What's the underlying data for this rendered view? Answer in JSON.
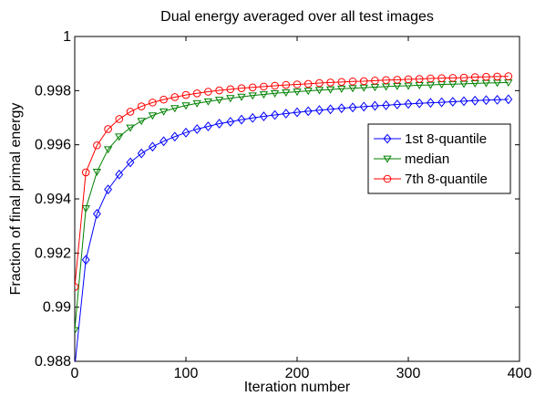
{
  "chart_data": {
    "type": "line",
    "title": "Dual energy averaged over all test images",
    "xlabel": "Iteration number",
    "ylabel": "Fraction of final primal energy",
    "xlim": [
      0,
      400
    ],
    "ylim": [
      0.988,
      1
    ],
    "x_ticks": [
      0,
      100,
      200,
      300,
      400
    ],
    "x_tick_labels": [
      "0",
      "100",
      "200",
      "300",
      "400"
    ],
    "y_ticks": [
      0.988,
      0.99,
      0.992,
      0.994,
      0.996,
      0.998,
      1
    ],
    "y_tick_labels": [
      "0.988",
      "0.99",
      "0.992",
      "0.994",
      "0.996",
      "0.998",
      "1"
    ],
    "grid": false,
    "legend_position": "right",
    "x": [
      0,
      10,
      20,
      30,
      40,
      50,
      60,
      70,
      80,
      90,
      100,
      110,
      120,
      130,
      140,
      150,
      160,
      170,
      180,
      190,
      200,
      210,
      220,
      230,
      240,
      250,
      260,
      270,
      280,
      290,
      300,
      310,
      320,
      330,
      340,
      350,
      360,
      370,
      380,
      390
    ],
    "series": [
      {
        "name": "1st 8-quantile",
        "color": "#0000ff",
        "marker": "diamond",
        "values": [
          0.9878,
          0.99175,
          0.99345,
          0.99435,
          0.9949,
          0.99535,
          0.99568,
          0.99593,
          0.99613,
          0.9963,
          0.99645,
          0.99658,
          0.99668,
          0.99678,
          0.99685,
          0.99693,
          0.99699,
          0.99705,
          0.9971,
          0.99715,
          0.9972,
          0.99724,
          0.99728,
          0.99731,
          0.99735,
          0.99738,
          0.99741,
          0.99744,
          0.99746,
          0.99749,
          0.99751,
          0.99753,
          0.99755,
          0.99757,
          0.99759,
          0.99761,
          0.99763,
          0.99765,
          0.99766,
          0.99768
        ]
      },
      {
        "name": "median",
        "color": "#008000",
        "marker": "triangle-down",
        "values": [
          0.98915,
          0.99365,
          0.995,
          0.99583,
          0.9963,
          0.99663,
          0.99688,
          0.99708,
          0.99723,
          0.99735,
          0.99745,
          0.99753,
          0.9976,
          0.99766,
          0.99772,
          0.99777,
          0.99782,
          0.99786,
          0.9979,
          0.99793,
          0.99796,
          0.99799,
          0.99802,
          0.99804,
          0.99807,
          0.99809,
          0.99811,
          0.99813,
          0.99815,
          0.99817,
          0.99818,
          0.9982,
          0.99821,
          0.99823,
          0.99824,
          0.99825,
          0.99827,
          0.99828,
          0.99829,
          0.9983
        ]
      },
      {
        "name": "7th 8-quantile",
        "color": "#ff0000",
        "marker": "circle",
        "values": [
          0.99075,
          0.99498,
          0.99598,
          0.99658,
          0.99695,
          0.99722,
          0.99742,
          0.99756,
          0.99767,
          0.99776,
          0.99784,
          0.9979,
          0.99796,
          0.99801,
          0.99805,
          0.99809,
          0.99812,
          0.99815,
          0.99818,
          0.99821,
          0.99823,
          0.99825,
          0.99828,
          0.9983,
          0.99832,
          0.99834,
          0.99835,
          0.99837,
          0.99839,
          0.9984,
          0.99842,
          0.99843,
          0.99845,
          0.99846,
          0.99847,
          0.99848,
          0.9985,
          0.99851,
          0.99852,
          0.99853
        ]
      }
    ]
  }
}
